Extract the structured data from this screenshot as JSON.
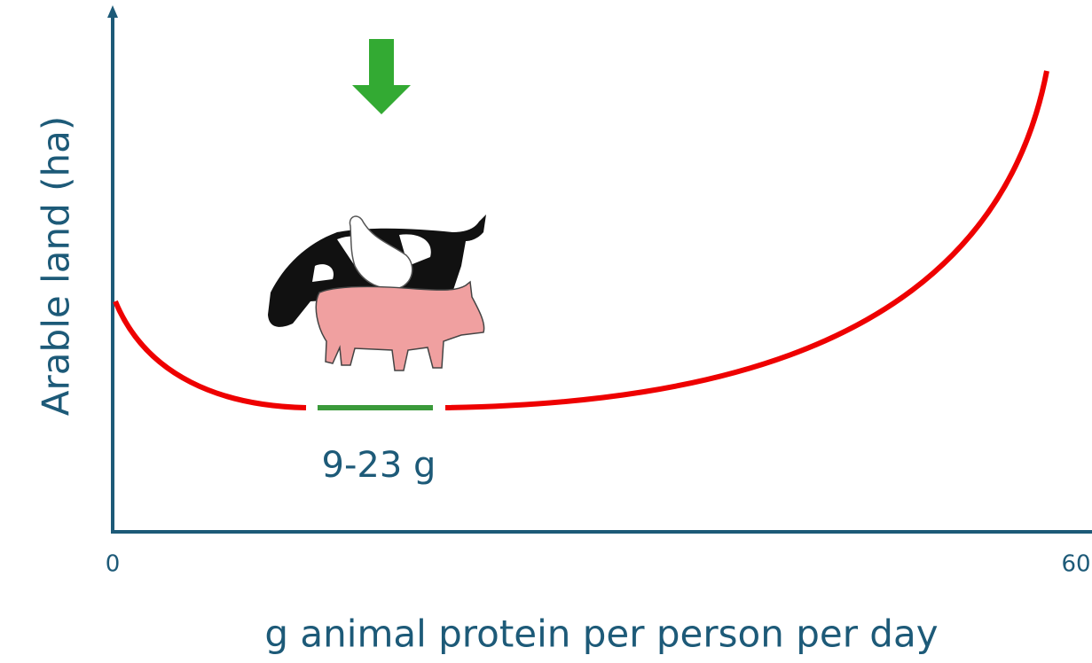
{
  "chart_data": {
    "type": "line",
    "x_label": "g animal protein per person per day",
    "y_label": "Arable land  (ha)",
    "xlim": [
      0,
      60
    ],
    "xticks": [
      0,
      60
    ],
    "annotation": "9-23 g",
    "color": "#ee0000",
    "highlight_color": "#3a9a3a"
  }
}
